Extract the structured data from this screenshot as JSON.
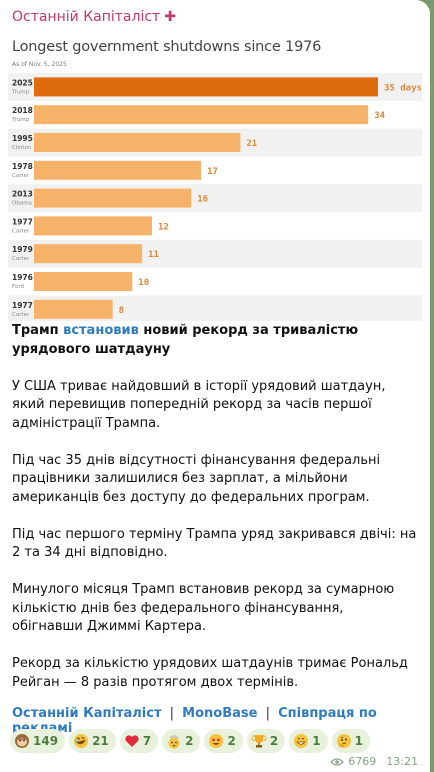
{
  "channel": {
    "name": "Останній Капіталіст",
    "mark": "✚"
  },
  "chart_data": {
    "type": "bar",
    "orientation": "horizontal",
    "title": "Longest government shutdowns since 1976",
    "subtitle": "As of Nov. 5, 2025",
    "categories": [
      {
        "year": "2025",
        "president": "Trump"
      },
      {
        "year": "2018",
        "president": "Trump"
      },
      {
        "year": "1995",
        "president": "Clinton"
      },
      {
        "year": "1978",
        "president": "Carter"
      },
      {
        "year": "2013",
        "president": "Obama"
      },
      {
        "year": "1977",
        "president": "Carter"
      },
      {
        "year": "1979",
        "president": "Carter"
      },
      {
        "year": "1976",
        "president": "Ford"
      },
      {
        "year": "1977",
        "president": "Carter"
      }
    ],
    "values": [
      35,
      34,
      21,
      17,
      16,
      12,
      11,
      10,
      8
    ],
    "value_labels": [
      "35 days",
      "34",
      "21",
      "17",
      "16",
      "12",
      "11",
      "10",
      "8"
    ],
    "xlim": [
      0,
      35
    ],
    "grid": false,
    "colors": {
      "highlight": "#de6b0e",
      "bar": "#f7b26a",
      "label": "#d9883a",
      "stripe": "#f1f1f1"
    }
  },
  "post": {
    "headline_pre": "Трамп ",
    "headline_link": "встановив",
    "headline_post": " новий рекорд за тривалістю урядового шатдауну",
    "paragraphs": [
      "У США триває найдовший в історії урядовий шатдаун, який перевищив попередній рекорд за часів першої адміністрації Трампа.",
      "Під час 35 днів відсутності фінансування федеральні працівники залишилися без зарплат, а мільйони американців без доступу до федеральних програм.",
      "Під час першого терміну Трампа уряд закривався двічі: на 2 та 34 дні відповідно.",
      "Минулого місяця Трамп встановив рекорд за сумарною кількістю днів без федерального фінансування, обігнавши Джиммі Картера.",
      "Рекорд за кількістю урядових шатдаунів тримає Рональд Рейган — 8 разів протягом двох термінів."
    ]
  },
  "footer": {
    "links": [
      "Останній Капіталіст",
      "MonoBase",
      "Співпраця по рекламі"
    ],
    "separator": "|"
  },
  "reactions": [
    {
      "icon": "monkey-face-icon",
      "count": "149"
    },
    {
      "icon": "rofl-face-icon",
      "count": "21"
    },
    {
      "icon": "red-heart-icon",
      "count": "7"
    },
    {
      "icon": "exploding-head-icon",
      "count": "2"
    },
    {
      "icon": "heart-eyes-face-icon",
      "count": "2"
    },
    {
      "icon": "trophy-icon",
      "count": "2"
    },
    {
      "icon": "grinning-face-icon",
      "count": "1"
    },
    {
      "icon": "thinking-face-icon",
      "count": "1"
    }
  ],
  "meta": {
    "views": "6769",
    "time": "13:21"
  }
}
